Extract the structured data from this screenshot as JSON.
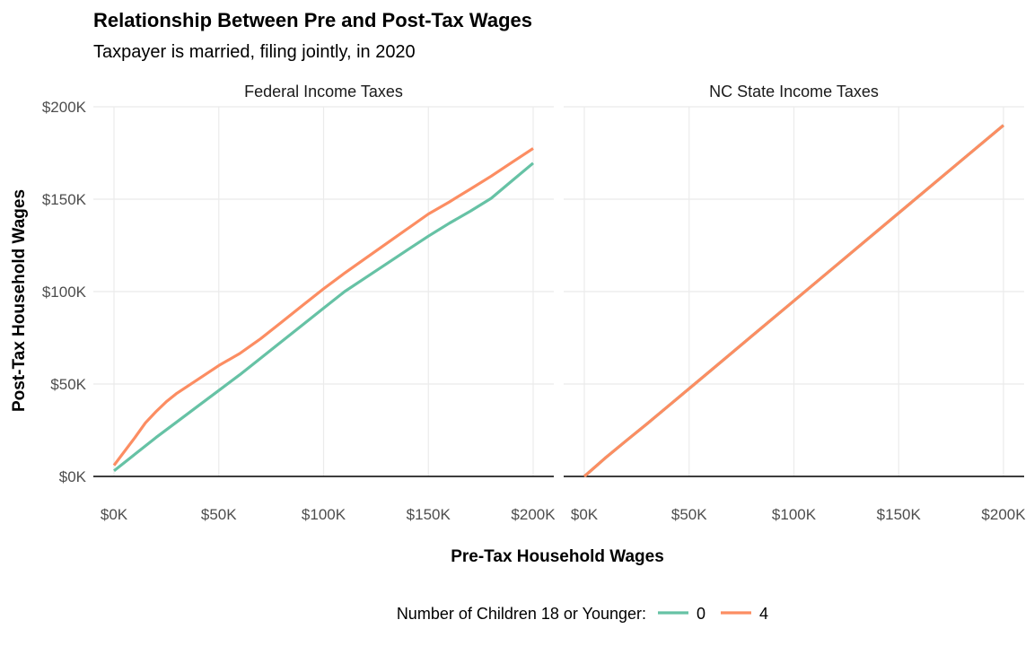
{
  "chart_data": {
    "type": "line",
    "title": "Relationship Between Pre and Post-Tax Wages",
    "subtitle": "Taxpayer is married, filing jointly, in 2020",
    "xlabel": "Pre-Tax Household Wages",
    "ylabel": "Post-Tax Household Wages",
    "xlim": [
      0,
      200000
    ],
    "ylim": [
      0,
      200000
    ],
    "x_ticks": [
      0,
      50000,
      100000,
      150000,
      200000
    ],
    "x_tick_labels": [
      "$0K",
      "$50K",
      "$100K",
      "$150K",
      "$200K"
    ],
    "y_ticks": [
      0,
      50000,
      100000,
      150000,
      200000
    ],
    "y_tick_labels": [
      "$0K",
      "$50K",
      "$100K",
      "$150K",
      "$200K"
    ],
    "grid": true,
    "legend": {
      "title": "Number of Children 18 or Younger:",
      "placement": "bottom",
      "entries": [
        {
          "label": "0",
          "color": "#66c2a5"
        },
        {
          "label": "4",
          "color": "#fc8d62"
        }
      ]
    },
    "panels": [
      {
        "title": "Federal Income Taxes",
        "series": [
          {
            "name": "0",
            "color": "#66c2a5",
            "x": [
              0,
              10000,
              20000,
              30000,
              40000,
              50000,
              60000,
              70000,
              80000,
              90000,
              100000,
              110000,
              120000,
              130000,
              140000,
              150000,
              160000,
              170000,
              180000,
              190000,
              200000
            ],
            "y": [
              3000,
              12000,
              21000,
              29500,
              38000,
              46500,
              55000,
              64000,
              73000,
              82000,
              91000,
              100000,
              107500,
              115000,
              122500,
              130000,
              137000,
              143500,
              150500,
              160000,
              169500
            ]
          },
          {
            "name": "4",
            "color": "#fc8d62",
            "x": [
              0,
              10000,
              15000,
              20000,
              25000,
              30000,
              40000,
              50000,
              60000,
              70000,
              80000,
              90000,
              100000,
              110000,
              120000,
              130000,
              140000,
              150000,
              160000,
              170000,
              180000,
              190000,
              200000
            ],
            "y": [
              6000,
              21000,
              29000,
              35000,
              40500,
              45000,
              52500,
              60000,
              66500,
              74500,
              83500,
              92500,
              101500,
              110000,
              118000,
              126000,
              134000,
              142000,
              148500,
              155500,
              162500,
              170000,
              177500
            ]
          }
        ]
      },
      {
        "title": "NC State Income Taxes",
        "series": [
          {
            "name": "0",
            "color": "#66c2a5",
            "x": [
              0,
              10000,
              20000,
              30000,
              40000,
              50000,
              60000,
              80000,
              100000,
              120000,
              140000,
              160000,
              180000,
              200000
            ],
            "y": [
              0,
              10000,
              19300,
              28500,
              38000,
              47500,
              57000,
              76000,
              95000,
              114000,
              133000,
              152000,
              171000,
              190000
            ]
          },
          {
            "name": "4",
            "color": "#fc8d62",
            "x": [
              0,
              10000,
              20000,
              30000,
              40000,
              50000,
              60000,
              80000,
              100000,
              120000,
              140000,
              160000,
              180000,
              200000
            ],
            "y": [
              0,
              10000,
              19300,
              28500,
              38000,
              47500,
              57000,
              76000,
              95000,
              114000,
              133000,
              152000,
              171000,
              190000
            ]
          }
        ]
      }
    ]
  }
}
